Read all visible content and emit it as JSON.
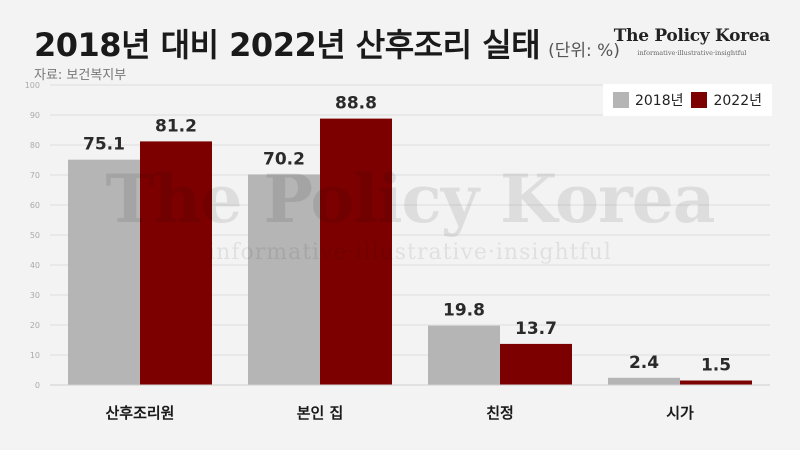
{
  "header": {
    "title": "2018년 대비 2022년 산후조리 실태",
    "unit": "(단위: %)",
    "source": "자료: 보건복지부"
  },
  "brand": {
    "name": "The Policy Korea",
    "tagline": "informative·illustrative·insightful"
  },
  "watermark": {
    "main": "The Policy Korea",
    "sub": "informative·illustrative·insightful"
  },
  "colors": {
    "series_2018": "#b5b5b5",
    "series_2022": "#7d0000",
    "background": "#f3f3f3"
  },
  "chart_data": {
    "type": "bar",
    "categories": [
      "산후조리원",
      "본인 집",
      "친정",
      "시가"
    ],
    "series": [
      {
        "name": "2018년",
        "values": [
          75.1,
          70.2,
          19.8,
          2.4
        ]
      },
      {
        "name": "2022년",
        "values": [
          81.2,
          88.8,
          13.7,
          1.5
        ]
      }
    ],
    "ylim": [
      0,
      100
    ],
    "yticks": [
      0,
      10,
      20,
      30,
      40,
      50,
      60,
      70,
      80,
      90,
      100
    ],
    "grid": true,
    "legend": "top-right",
    "data_labels": true
  }
}
